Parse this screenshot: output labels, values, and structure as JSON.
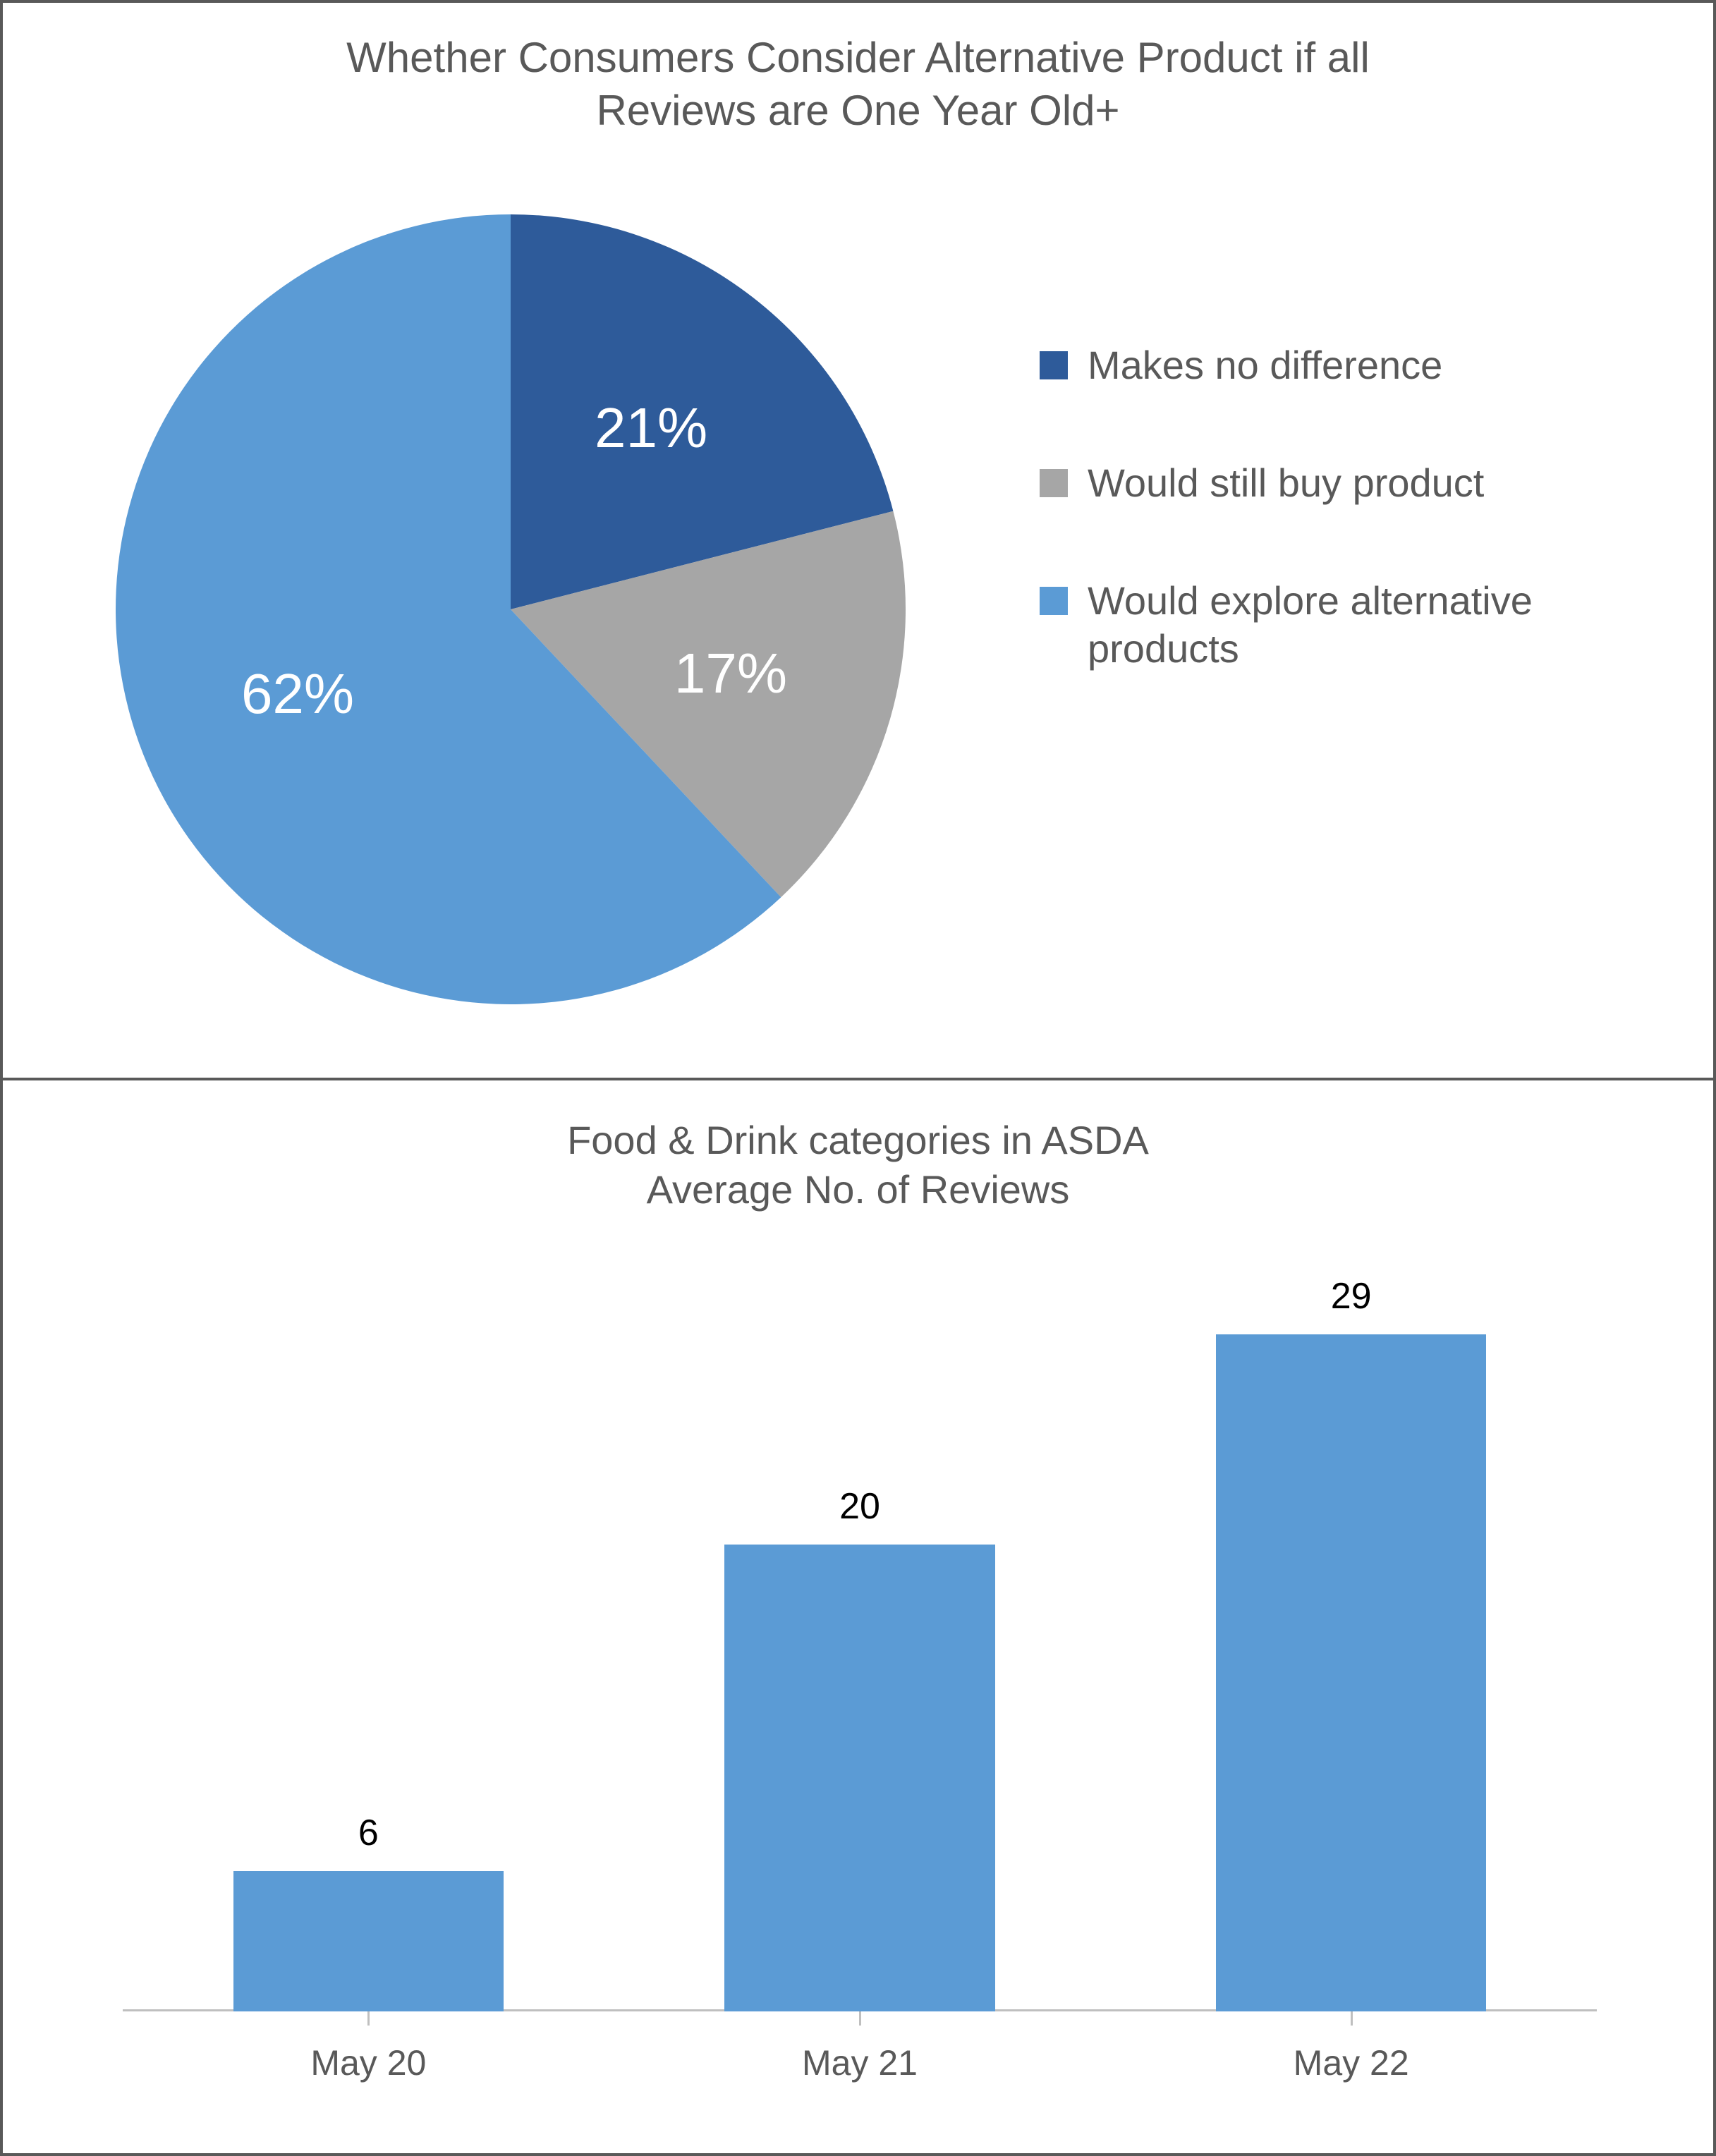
{
  "pie_chart": {
    "type": "pie",
    "title_lines": [
      "Whether Consumers Consider Alternative Product if all",
      "Reviews are One Year Old+"
    ],
    "title_fontsize": 60,
    "title_color": "#595959",
    "slices": [
      {
        "label": "Makes no difference",
        "value": 21,
        "display": "21%",
        "color": "#2e5b9a"
      },
      {
        "label": "Would still buy product",
        "value": 17,
        "display": "17%",
        "color": "#a6a6a6"
      },
      {
        "label": "Would explore alternative products",
        "value": 62,
        "display": "62%",
        "color": "#5b9bd5"
      }
    ],
    "data_label_fontsize": 80,
    "data_label_color": "#ffffff",
    "legend_fontsize": 56,
    "legend_text_color": "#595959",
    "legend_swatch_size": 40,
    "background_color": "#ffffff",
    "pie_radius": 560,
    "start_angle_deg": -90
  },
  "bar_chart": {
    "type": "bar",
    "title_lines": [
      "Food & Drink categories in ASDA",
      "Average No. of Reviews"
    ],
    "title_fontsize": 56,
    "title_color": "#595959",
    "categories": [
      "May 20",
      "May 21",
      "May 22"
    ],
    "values": [
      6,
      20,
      29
    ],
    "bar_color": "#5b9bd5",
    "value_label_fontsize": 52,
    "value_label_color": "#000000",
    "category_label_fontsize": 50,
    "category_label_color": "#595959",
    "ylim": [
      0,
      29
    ],
    "bar_width_ratio": 0.55,
    "plot_background": "#ffffff",
    "axis_color": "#bfbfbf"
  },
  "frame": {
    "border_color": "#595959",
    "border_width": 4,
    "background_color": "#ffffff"
  }
}
